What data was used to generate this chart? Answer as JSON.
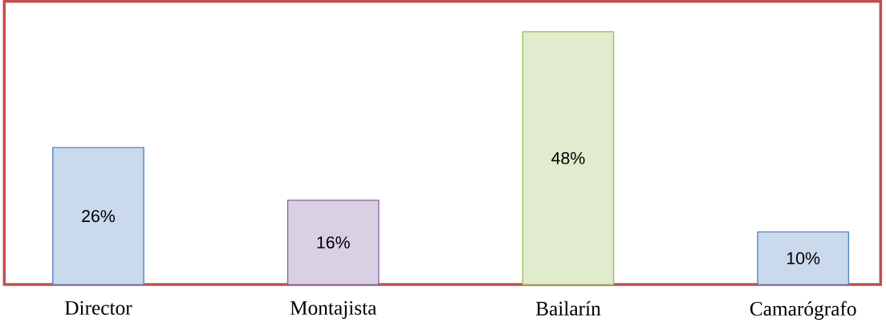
{
  "chart_data": {
    "type": "bar",
    "categories": [
      "Director",
      "Montajista",
      "Bailarín",
      "Camarógrafo"
    ],
    "values": [
      26,
      16,
      48,
      10
    ],
    "value_labels": [
      "26%",
      "16%",
      "48%",
      "10%"
    ],
    "colors": [
      "#4f81bd",
      "#8064a2",
      "#9bbb59",
      "#4f81bd"
    ]
  }
}
